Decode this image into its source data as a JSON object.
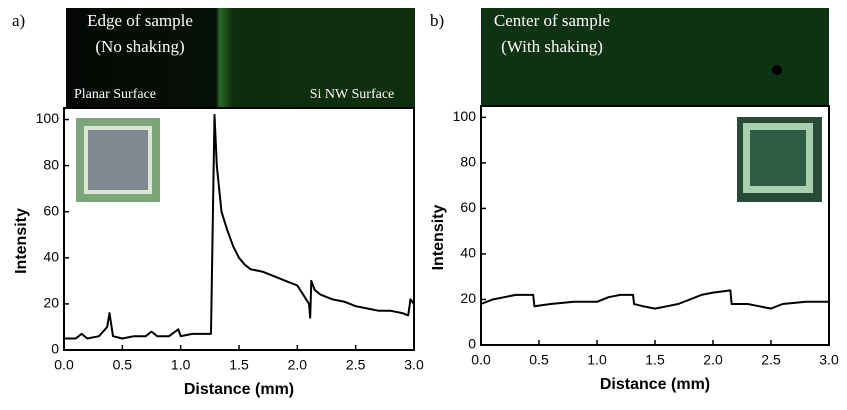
{
  "chart_data": [
    {
      "type": "line",
      "panel_label": "a)",
      "annotations": [
        "Edge of sample",
        "(No shaking)",
        "Planar Surface",
        "Si NW Surface"
      ],
      "xlabel": "Distance (mm)",
      "ylabel": "Intensity",
      "xlim": [
        0,
        3
      ],
      "ylim": [
        0,
        105
      ],
      "xticks": [
        {
          "value": 0,
          "label": "0.0"
        },
        {
          "value": 0.5,
          "label": "0.5"
        },
        {
          "value": 1,
          "label": "1.0"
        },
        {
          "value": 1.5,
          "label": "1.5"
        },
        {
          "value": 2,
          "label": "2.0"
        },
        {
          "value": 2.5,
          "label": "2.5"
        },
        {
          "value": 3,
          "label": "3.0"
        }
      ],
      "yticks": [
        0,
        20,
        40,
        60,
        80,
        100
      ],
      "series": [
        {
          "color": "#000000",
          "x": [
            0.0,
            0.1,
            0.15,
            0.2,
            0.3,
            0.37,
            0.39,
            0.42,
            0.5,
            0.6,
            0.7,
            0.75,
            0.8,
            0.9,
            0.98,
            1.0,
            1.1,
            1.2,
            1.26,
            1.27,
            1.29,
            1.31,
            1.35,
            1.4,
            1.45,
            1.5,
            1.55,
            1.6,
            1.7,
            1.8,
            1.9,
            2.0,
            2.05,
            2.1,
            2.11,
            2.12,
            2.15,
            2.2,
            2.3,
            2.4,
            2.5,
            2.6,
            2.7,
            2.8,
            2.9,
            2.95,
            2.97,
            3.0
          ],
          "values": [
            5,
            5,
            7,
            5,
            6,
            10,
            16,
            6,
            5,
            6,
            6,
            8,
            6,
            6,
            9,
            6,
            7,
            7,
            7,
            40,
            102,
            80,
            60,
            52,
            45,
            40,
            37,
            35,
            34,
            32,
            30,
            28,
            24,
            20,
            14,
            30,
            26,
            24,
            22,
            21,
            19,
            18,
            17,
            17,
            16,
            15,
            22,
            20
          ]
        }
      ]
    },
    {
      "type": "line",
      "panel_label": "b)",
      "annotations": [
        "Center of sample",
        "(With shaking)"
      ],
      "xlabel": "Distance (mm)",
      "ylabel": "Intensity",
      "xlim": [
        0,
        3
      ],
      "ylim": [
        0,
        105
      ],
      "xticks": [
        {
          "value": 0,
          "label": "0.0"
        },
        {
          "value": 0.5,
          "label": "0.5"
        },
        {
          "value": 1,
          "label": "1.0"
        },
        {
          "value": 1.5,
          "label": "1.5"
        },
        {
          "value": 2,
          "label": "2.0"
        },
        {
          "value": 2.5,
          "label": "2.5"
        },
        {
          "value": 3,
          "label": "3.0"
        }
      ],
      "yticks": [
        0,
        20,
        40,
        60,
        80,
        100
      ],
      "series": [
        {
          "color": "#000000",
          "x": [
            0.0,
            0.1,
            0.2,
            0.3,
            0.4,
            0.45,
            0.46,
            0.6,
            0.8,
            1.0,
            1.1,
            1.2,
            1.31,
            1.32,
            1.4,
            1.5,
            1.6,
            1.7,
            1.8,
            1.9,
            2.0,
            2.15,
            2.16,
            2.3,
            2.4,
            2.5,
            2.6,
            2.8,
            3.0
          ],
          "values": [
            18,
            20,
            21,
            22,
            22,
            22,
            17,
            18,
            19,
            19,
            21,
            22,
            22,
            18,
            17,
            16,
            17,
            18,
            20,
            22,
            23,
            24,
            18,
            18,
            17,
            16,
            18,
            19,
            19
          ]
        }
      ]
    }
  ]
}
